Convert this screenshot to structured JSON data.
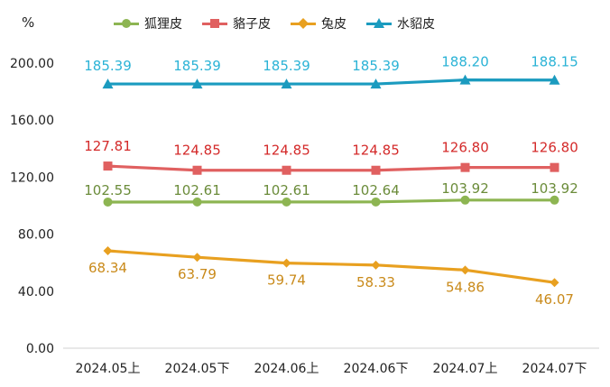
{
  "chart_data": {
    "type": "line",
    "unit": "%",
    "categories": [
      "2024.05上",
      "2024.05下",
      "2024.06上",
      "2024.06下",
      "2024.07上",
      "2024.07下"
    ],
    "ylim": [
      0,
      200
    ],
    "yticks": [
      "0.00",
      "40.00",
      "80.00",
      "120.00",
      "160.00",
      "200.00"
    ],
    "legend_position": "top",
    "grid": false,
    "series": [
      {
        "name": "狐狸皮",
        "color": "#8db552",
        "label_color": "#6b8c3a",
        "marker": "circle",
        "values": [
          102.55,
          102.61,
          102.61,
          102.64,
          103.92,
          103.92
        ],
        "labels": [
          "102.55",
          "102.61",
          "102.61",
          "102.64",
          "103.92",
          "103.92"
        ]
      },
      {
        "name": "貉子皮",
        "color": "#e06060",
        "label_color": "#d42a2a",
        "marker": "square",
        "values": [
          127.81,
          124.85,
          124.85,
          124.85,
          126.8,
          126.8
        ],
        "labels": [
          "127.81",
          "124.85",
          "124.85",
          "124.85",
          "126.80",
          "126.80"
        ]
      },
      {
        "name": "兔皮",
        "color": "#e8a020",
        "label_color": "#c98a1a",
        "marker": "diamond",
        "values": [
          68.34,
          63.79,
          59.74,
          58.33,
          54.86,
          46.07
        ],
        "labels": [
          "68.34",
          "63.79",
          "59.74",
          "58.33",
          "54.86",
          "46.07"
        ]
      },
      {
        "name": "水貂皮",
        "color": "#1b9bbf",
        "label_color": "#2bb3d6",
        "marker": "triangle",
        "values": [
          185.39,
          185.39,
          185.39,
          185.39,
          188.2,
          188.15
        ],
        "labels": [
          "185.39",
          "185.39",
          "185.39",
          "185.39",
          "188.20",
          "188.15"
        ]
      }
    ]
  }
}
